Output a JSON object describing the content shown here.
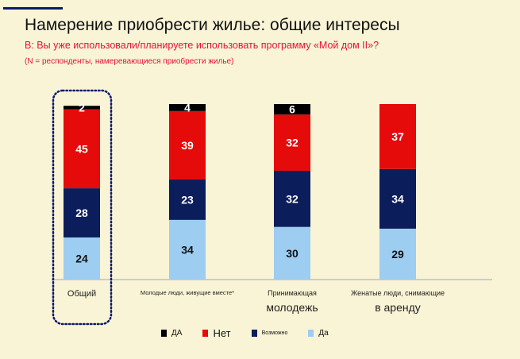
{
  "header": {
    "title": "Намерение приобрести жилье: общие интересы",
    "question": "В: Вы уже использовали/планируете использовать программу «Мой дом II»?",
    "note": "(N = респонденты, намеревающиеся приобрести жилье)"
  },
  "chart_data": {
    "type": "bar",
    "stacked": true,
    "categories": [
      "Общий",
      "Молодые люди, живущие вместе*",
      "Принимающая молодежь",
      "Женатые люди, снимающие в аренду"
    ],
    "category_lines": [
      [
        "Общий"
      ],
      [
        "Молодые люди, живущие вместе*"
      ],
      [
        "Принимающая",
        "молодежь"
      ],
      [
        "Женатые люди, снимающие",
        "в аренду"
      ]
    ],
    "series": [
      {
        "name": "Да",
        "color": "#9dcdf0",
        "values": [
          24,
          34,
          30,
          29
        ]
      },
      {
        "name": "Возможно",
        "color": "#0c1d5c",
        "values": [
          28,
          23,
          32,
          34
        ]
      },
      {
        "name": "Нет",
        "color": "#e50b0b",
        "values": [
          45,
          39,
          32,
          37
        ]
      },
      {
        "name": "ДА",
        "color": "#000000",
        "values": [
          2,
          4,
          6,
          0
        ]
      }
    ],
    "legend_order": [
      "ДА",
      "Нет",
      "Возможно",
      "Да"
    ],
    "highlighted_category": "Общий",
    "ylim": [
      0,
      100
    ],
    "grid": false,
    "legend_position": "bottom"
  }
}
